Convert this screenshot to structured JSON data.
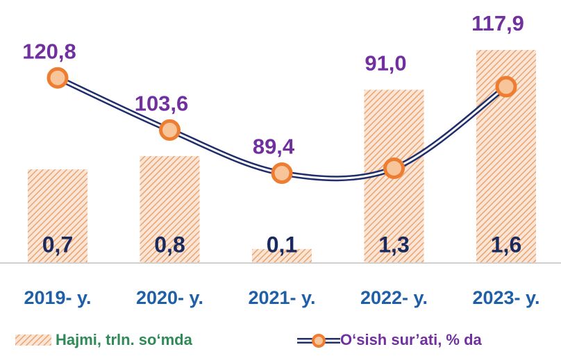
{
  "chart_data": {
    "type": "bar",
    "categories": [
      "2019- y.",
      "2020- y.",
      "2021- y.",
      "2022- y.",
      "2023- y."
    ],
    "series": [
      {
        "name": "Hajmi, trln. so‘mda",
        "type": "bar",
        "color": "#f4b183",
        "values": [
          0.7,
          0.8,
          0.1,
          1.3,
          1.6
        ],
        "value_labels": [
          "0,7",
          "0,8",
          "0,1",
          "1,3",
          "1,6"
        ]
      },
      {
        "name": "O‘sish sur’ati, % da",
        "type": "line",
        "axis": "y2",
        "color": "#ed7d31",
        "values": [
          120.8,
          103.6,
          89.4,
          91.0,
          117.9
        ],
        "value_labels": [
          "120,8",
          "103,6",
          "89,4",
          "91,0",
          "117,9"
        ]
      }
    ],
    "ylim": [
      0,
      1.6
    ],
    "y2lim": [
      60,
      130
    ]
  }
}
